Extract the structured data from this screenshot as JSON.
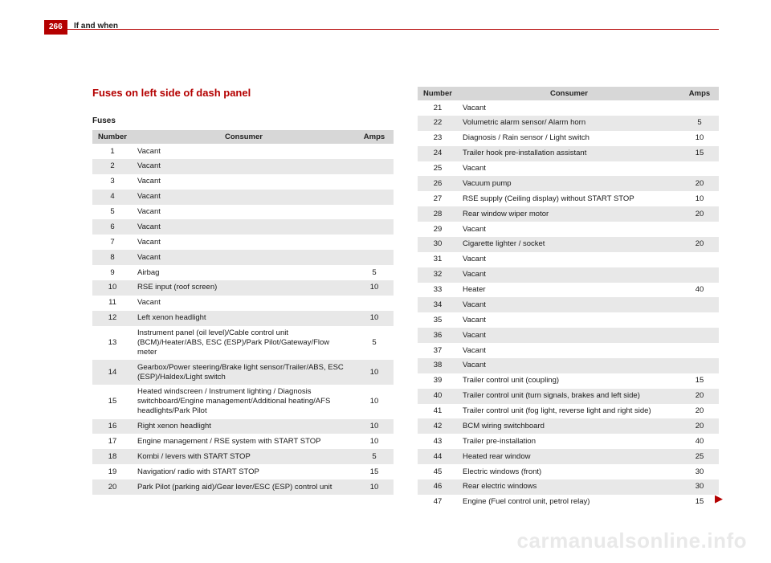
{
  "header": {
    "page_number": "266",
    "section": "If and when"
  },
  "section_title": "Fuses on left side of dash panel",
  "subtitle": "Fuses",
  "columns": {
    "number": "Number",
    "consumer": "Consumer",
    "amps": "Amps"
  },
  "left_rows": [
    {
      "n": "1",
      "c": "Vacant",
      "a": ""
    },
    {
      "n": "2",
      "c": "Vacant",
      "a": ""
    },
    {
      "n": "3",
      "c": "Vacant",
      "a": ""
    },
    {
      "n": "4",
      "c": "Vacant",
      "a": ""
    },
    {
      "n": "5",
      "c": "Vacant",
      "a": ""
    },
    {
      "n": "6",
      "c": "Vacant",
      "a": ""
    },
    {
      "n": "7",
      "c": "Vacant",
      "a": ""
    },
    {
      "n": "8",
      "c": "Vacant",
      "a": ""
    },
    {
      "n": "9",
      "c": "Airbag",
      "a": "5"
    },
    {
      "n": "10",
      "c": "RSE input (roof screen)",
      "a": "10"
    },
    {
      "n": "11",
      "c": "Vacant",
      "a": ""
    },
    {
      "n": "12",
      "c": "Left xenon headlight",
      "a": "10"
    },
    {
      "n": "13",
      "c": "Instrument panel (oil level)/Cable control unit (BCM)/Heater/ABS, ESC (ESP)/Park Pilot/Gateway/Flow meter",
      "a": "5"
    },
    {
      "n": "14",
      "c": "Gearbox/Power steering/Brake light sensor/Trailer/ABS, ESC (ESP)/Haldex/Light switch",
      "a": "10"
    },
    {
      "n": "15",
      "c": "Heated windscreen / Instrument lighting / Diagnosis switchboard/Engine management/Additional heating/AFS headlights/Park Pilot",
      "a": "10"
    },
    {
      "n": "16",
      "c": "Right xenon headlight",
      "a": "10"
    },
    {
      "n": "17",
      "c": "Engine management / RSE system with START STOP",
      "a": "10"
    },
    {
      "n": "18",
      "c": "Kombi / levers with START STOP",
      "a": "5"
    },
    {
      "n": "19",
      "c": "Navigation/ radio with START STOP",
      "a": "15"
    },
    {
      "n": "20",
      "c": "Park Pilot (parking aid)/Gear lever/ESC (ESP) control unit",
      "a": "10"
    }
  ],
  "right_rows": [
    {
      "n": "21",
      "c": "Vacant",
      "a": ""
    },
    {
      "n": "22",
      "c": "Volumetric alarm sensor/ Alarm horn",
      "a": "5"
    },
    {
      "n": "23",
      "c": "Diagnosis / Rain sensor / Light switch",
      "a": "10"
    },
    {
      "n": "24",
      "c": "Trailer hook pre-installation assistant",
      "a": "15"
    },
    {
      "n": "25",
      "c": "Vacant",
      "a": ""
    },
    {
      "n": "26",
      "c": "Vacuum pump",
      "a": "20"
    },
    {
      "n": "27",
      "c": "RSE supply (Ceiling display) without START STOP",
      "a": "10"
    },
    {
      "n": "28",
      "c": "Rear window wiper motor",
      "a": "20"
    },
    {
      "n": "29",
      "c": "Vacant",
      "a": ""
    },
    {
      "n": "30",
      "c": "Cigarette lighter / socket",
      "a": "20"
    },
    {
      "n": "31",
      "c": "Vacant",
      "a": ""
    },
    {
      "n": "32",
      "c": "Vacant",
      "a": ""
    },
    {
      "n": "33",
      "c": "Heater",
      "a": "40"
    },
    {
      "n": "34",
      "c": "Vacant",
      "a": ""
    },
    {
      "n": "35",
      "c": "Vacant",
      "a": ""
    },
    {
      "n": "36",
      "c": "Vacant",
      "a": ""
    },
    {
      "n": "37",
      "c": "Vacant",
      "a": ""
    },
    {
      "n": "38",
      "c": "Vacant",
      "a": ""
    },
    {
      "n": "39",
      "c": "Trailer control unit (coupling)",
      "a": "15"
    },
    {
      "n": "40",
      "c": "Trailer control unit (turn signals, brakes and left side)",
      "a": "20"
    },
    {
      "n": "41",
      "c": "Trailer control unit (fog light, reverse light and right side)",
      "a": "20"
    },
    {
      "n": "42",
      "c": "BCM wiring switchboard",
      "a": "20"
    },
    {
      "n": "43",
      "c": "Trailer pre-installation",
      "a": "40"
    },
    {
      "n": "44",
      "c": "Heated rear window",
      "a": "25"
    },
    {
      "n": "45",
      "c": "Electric windows (front)",
      "a": "30"
    },
    {
      "n": "46",
      "c": "Rear electric windows",
      "a": "30"
    },
    {
      "n": "47",
      "c": "Engine (Fuel control unit, petrol relay)",
      "a": "15"
    }
  ],
  "watermark": "carmanualsonline.info",
  "continue_glyph": "▶",
  "style": {
    "accent": "#b40000",
    "header_bg": "#d7d7d7",
    "stripe": "#e8e8e8",
    "watermark_color": "#e9e9e9"
  }
}
